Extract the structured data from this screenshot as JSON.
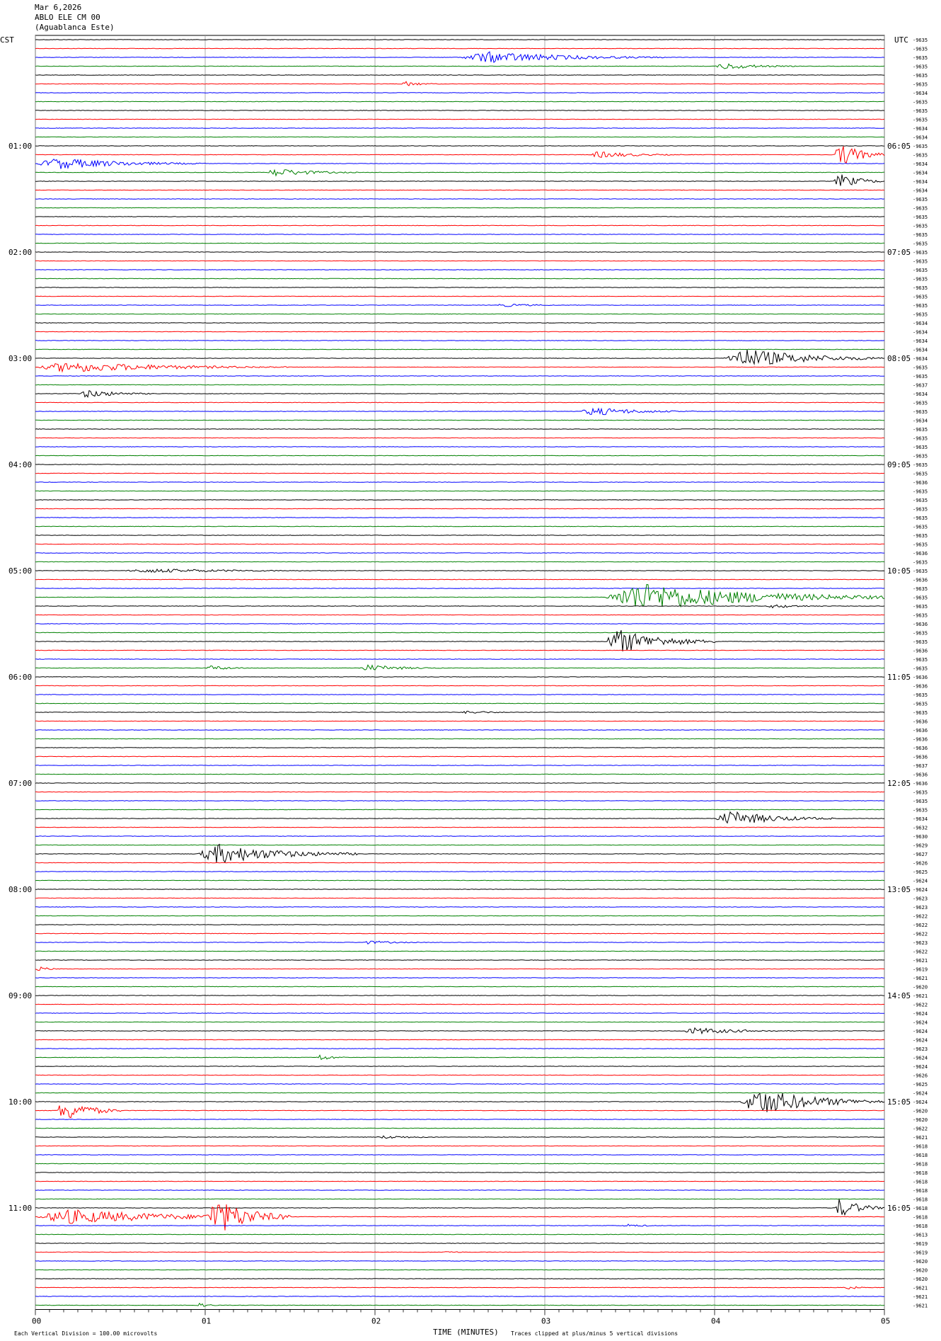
{
  "header": {
    "date": "Mar 6,2026",
    "station": "ABLO ELE CM 00",
    "location": "(Aguablanca Este)"
  },
  "left_tz": "CST",
  "right_tz": "UTC",
  "footer": {
    "scale_note": "Each Vertical Division =  100.00 microvolts",
    "xlabel": "TIME (MINUTES)",
    "clip_note": "Traces clipped at plus/minus 5 vertical divisions"
  },
  "colors": {
    "cycle": [
      "#000000",
      "#ff0000",
      "#0000ff",
      "#008000"
    ],
    "grid": "#999999",
    "text": "#000000"
  },
  "chart_data": {
    "type": "line",
    "subtype": "helicorder",
    "n_traces": 144,
    "minutes_per_trace": 5,
    "xlim": [
      0,
      5
    ],
    "x_ticks": [
      "00",
      "01",
      "02",
      "03",
      "04",
      "05"
    ],
    "left_hour_labels": [
      "01:00",
      "02:00",
      "03:00",
      "04:00",
      "05:00",
      "06:00",
      "07:00",
      "08:00",
      "09:00",
      "10:00",
      "11:00"
    ],
    "right_hour_labels": [
      "06:05",
      "07:05",
      "08:05",
      "09:05",
      "10:05",
      "11:05",
      "12:05",
      "13:05",
      "14:05",
      "15:05",
      "16:05"
    ],
    "hour_label_every_traces": 12,
    "trace_offsets": [
      -9635,
      -9635,
      -9635,
      -9635,
      -9635,
      -9635,
      -9634,
      -9635,
      -9635,
      -9635,
      -9634,
      -9634,
      -9635,
      -9635,
      -9634,
      -9634,
      -9634,
      -9634,
      -9635,
      -9635,
      -9635,
      -9635,
      -9635,
      -9635,
      -9635,
      -9635,
      -9635,
      -9635,
      -9635,
      -9635,
      -9635,
      -9635,
      -9634,
      -9634,
      -9634,
      -9634,
      -9634,
      -9635,
      -9635,
      -9637,
      -9634,
      -9635,
      -9635,
      -9634,
      -9635,
      -9635,
      -9635,
      -9635,
      -9635,
      -9635,
      -9636,
      -9635,
      -9635,
      -9635,
      -9635,
      -9635,
      -9635,
      -9635,
      -9636,
      -9635,
      -9635,
      -9636,
      -9635,
      -9635,
      -9635,
      -9635,
      -9636,
      -9635,
      -9635,
      -9636,
      -9635,
      -9635,
      -9636,
      -9636,
      -9635,
      -9635,
      -9635,
      -9636,
      -9636,
      -9636,
      -9636,
      -9636,
      -9637,
      -9636,
      -9636,
      -9635,
      -9635,
      -9635,
      -9634,
      -9632,
      -9630,
      -9629,
      -9627,
      -9626,
      -9625,
      -9624,
      -9624,
      -9623,
      -9623,
      -9622,
      -9622,
      -9622,
      -9623,
      -9622,
      -9621,
      -9619,
      -9621,
      -9620,
      -9621,
      -9622,
      -9624,
      -9624,
      -9624,
      -9624,
      -9623,
      -9624,
      -9624,
      -9626,
      -9625,
      -9624,
      -9624,
      -9620,
      -9620,
      -9622,
      -9621,
      -9618,
      -9618,
      -9618,
      -9618,
      -9618,
      -9618,
      -9618,
      -9618,
      -9618,
      -9618,
      -9613,
      -9619,
      -9619,
      -9620,
      -9620,
      -9620,
      -9621,
      -9621,
      -9621
    ],
    "events": [
      {
        "trace": 2,
        "start": 2.5,
        "end": 3.7,
        "amp": 1.4
      },
      {
        "trace": 3,
        "start": 4.0,
        "end": 4.5,
        "amp": 0.8
      },
      {
        "trace": 5,
        "start": 2.15,
        "end": 2.4,
        "amp": 0.6
      },
      {
        "trace": 13,
        "start": 3.25,
        "end": 3.8,
        "amp": 0.8
      },
      {
        "trace": 13,
        "start": 4.7,
        "end": 5.0,
        "amp": 3.0
      },
      {
        "trace": 14,
        "start": 0.0,
        "end": 1.0,
        "amp": 1.4
      },
      {
        "trace": 15,
        "start": 1.35,
        "end": 1.9,
        "amp": 1.0
      },
      {
        "trace": 16,
        "start": 4.7,
        "end": 5.0,
        "amp": 1.8
      },
      {
        "trace": 30,
        "start": 2.7,
        "end": 3.2,
        "amp": 0.4
      },
      {
        "trace": 36,
        "start": 4.05,
        "end": 5.0,
        "amp": 2.4
      },
      {
        "trace": 37,
        "start": 0.0,
        "end": 1.5,
        "amp": 1.3
      },
      {
        "trace": 40,
        "start": 0.25,
        "end": 0.7,
        "amp": 1.0
      },
      {
        "trace": 42,
        "start": 3.2,
        "end": 3.9,
        "amp": 1.0
      },
      {
        "trace": 60,
        "start": 0.5,
        "end": 1.9,
        "amp": 0.5
      },
      {
        "trace": 63,
        "start": 3.35,
        "end": 5.0,
        "amp": 3.5
      },
      {
        "trace": 64,
        "start": 4.3,
        "end": 4.7,
        "amp": 0.5
      },
      {
        "trace": 68,
        "start": 3.35,
        "end": 4.0,
        "amp": 3.0
      },
      {
        "trace": 71,
        "start": 1.0,
        "end": 1.3,
        "amp": 0.6
      },
      {
        "trace": 71,
        "start": 1.9,
        "end": 2.4,
        "amp": 0.8
      },
      {
        "trace": 76,
        "start": 2.5,
        "end": 2.9,
        "amp": 0.4
      },
      {
        "trace": 88,
        "start": 4.0,
        "end": 4.7,
        "amp": 1.8
      },
      {
        "trace": 92,
        "start": 0.95,
        "end": 1.9,
        "amp": 2.4
      },
      {
        "trace": 102,
        "start": 1.9,
        "end": 2.4,
        "amp": 0.4
      },
      {
        "trace": 105,
        "start": 0.0,
        "end": 0.2,
        "amp": 0.5
      },
      {
        "trace": 112,
        "start": 3.8,
        "end": 4.5,
        "amp": 0.8
      },
      {
        "trace": 115,
        "start": 1.65,
        "end": 1.85,
        "amp": 0.8
      },
      {
        "trace": 120,
        "start": 4.15,
        "end": 5.0,
        "amp": 3.2
      },
      {
        "trace": 121,
        "start": 0.12,
        "end": 0.5,
        "amp": 2.7
      },
      {
        "trace": 124,
        "start": 2.0,
        "end": 2.5,
        "amp": 0.4
      },
      {
        "trace": 133,
        "start": 0.0,
        "end": 1.5,
        "amp": 1.8
      },
      {
        "trace": 133,
        "start": 1.0,
        "end": 1.5,
        "amp": 4.5
      },
      {
        "trace": 132,
        "start": 4.7,
        "end": 5.0,
        "amp": 2.4
      },
      {
        "trace": 134,
        "start": 3.45,
        "end": 3.75,
        "amp": 0.4
      },
      {
        "trace": 137,
        "start": 2.4,
        "end": 2.6,
        "amp": 0.3
      },
      {
        "trace": 141,
        "start": 4.75,
        "end": 4.95,
        "amp": 0.5
      },
      {
        "trace": 143,
        "start": 0.95,
        "end": 1.1,
        "amp": 0.5
      }
    ]
  }
}
